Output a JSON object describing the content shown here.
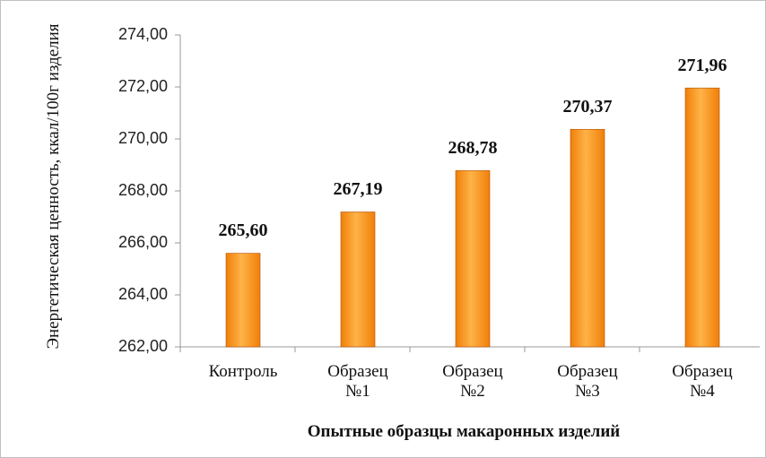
{
  "chart_data": {
    "type": "bar",
    "ylabel": "Энергетическая ценность, ккал/100г изделия",
    "xlabel": "Опытные образцы макаронных изделий",
    "categories": [
      "Контроль",
      "Образец №1",
      "Образец №2",
      "Образец №3",
      "Образец №4"
    ],
    "values": [
      265.6,
      267.19,
      268.78,
      270.37,
      271.96
    ],
    "value_labels": [
      "265,60",
      "267,19",
      "268,78",
      "270,37",
      "271,96"
    ],
    "color": "#f07f09",
    "ylim": [
      262,
      274
    ],
    "yticks": [
      {
        "value": 262,
        "label": "262,00"
      },
      {
        "value": 264,
        "label": "264,00"
      },
      {
        "value": 266,
        "label": "266,00"
      },
      {
        "value": 268,
        "label": "268,00"
      },
      {
        "value": 270,
        "label": "270,00"
      },
      {
        "value": 272,
        "label": "272,00"
      },
      {
        "value": 274,
        "label": "274,00"
      }
    ],
    "grid": false
  }
}
